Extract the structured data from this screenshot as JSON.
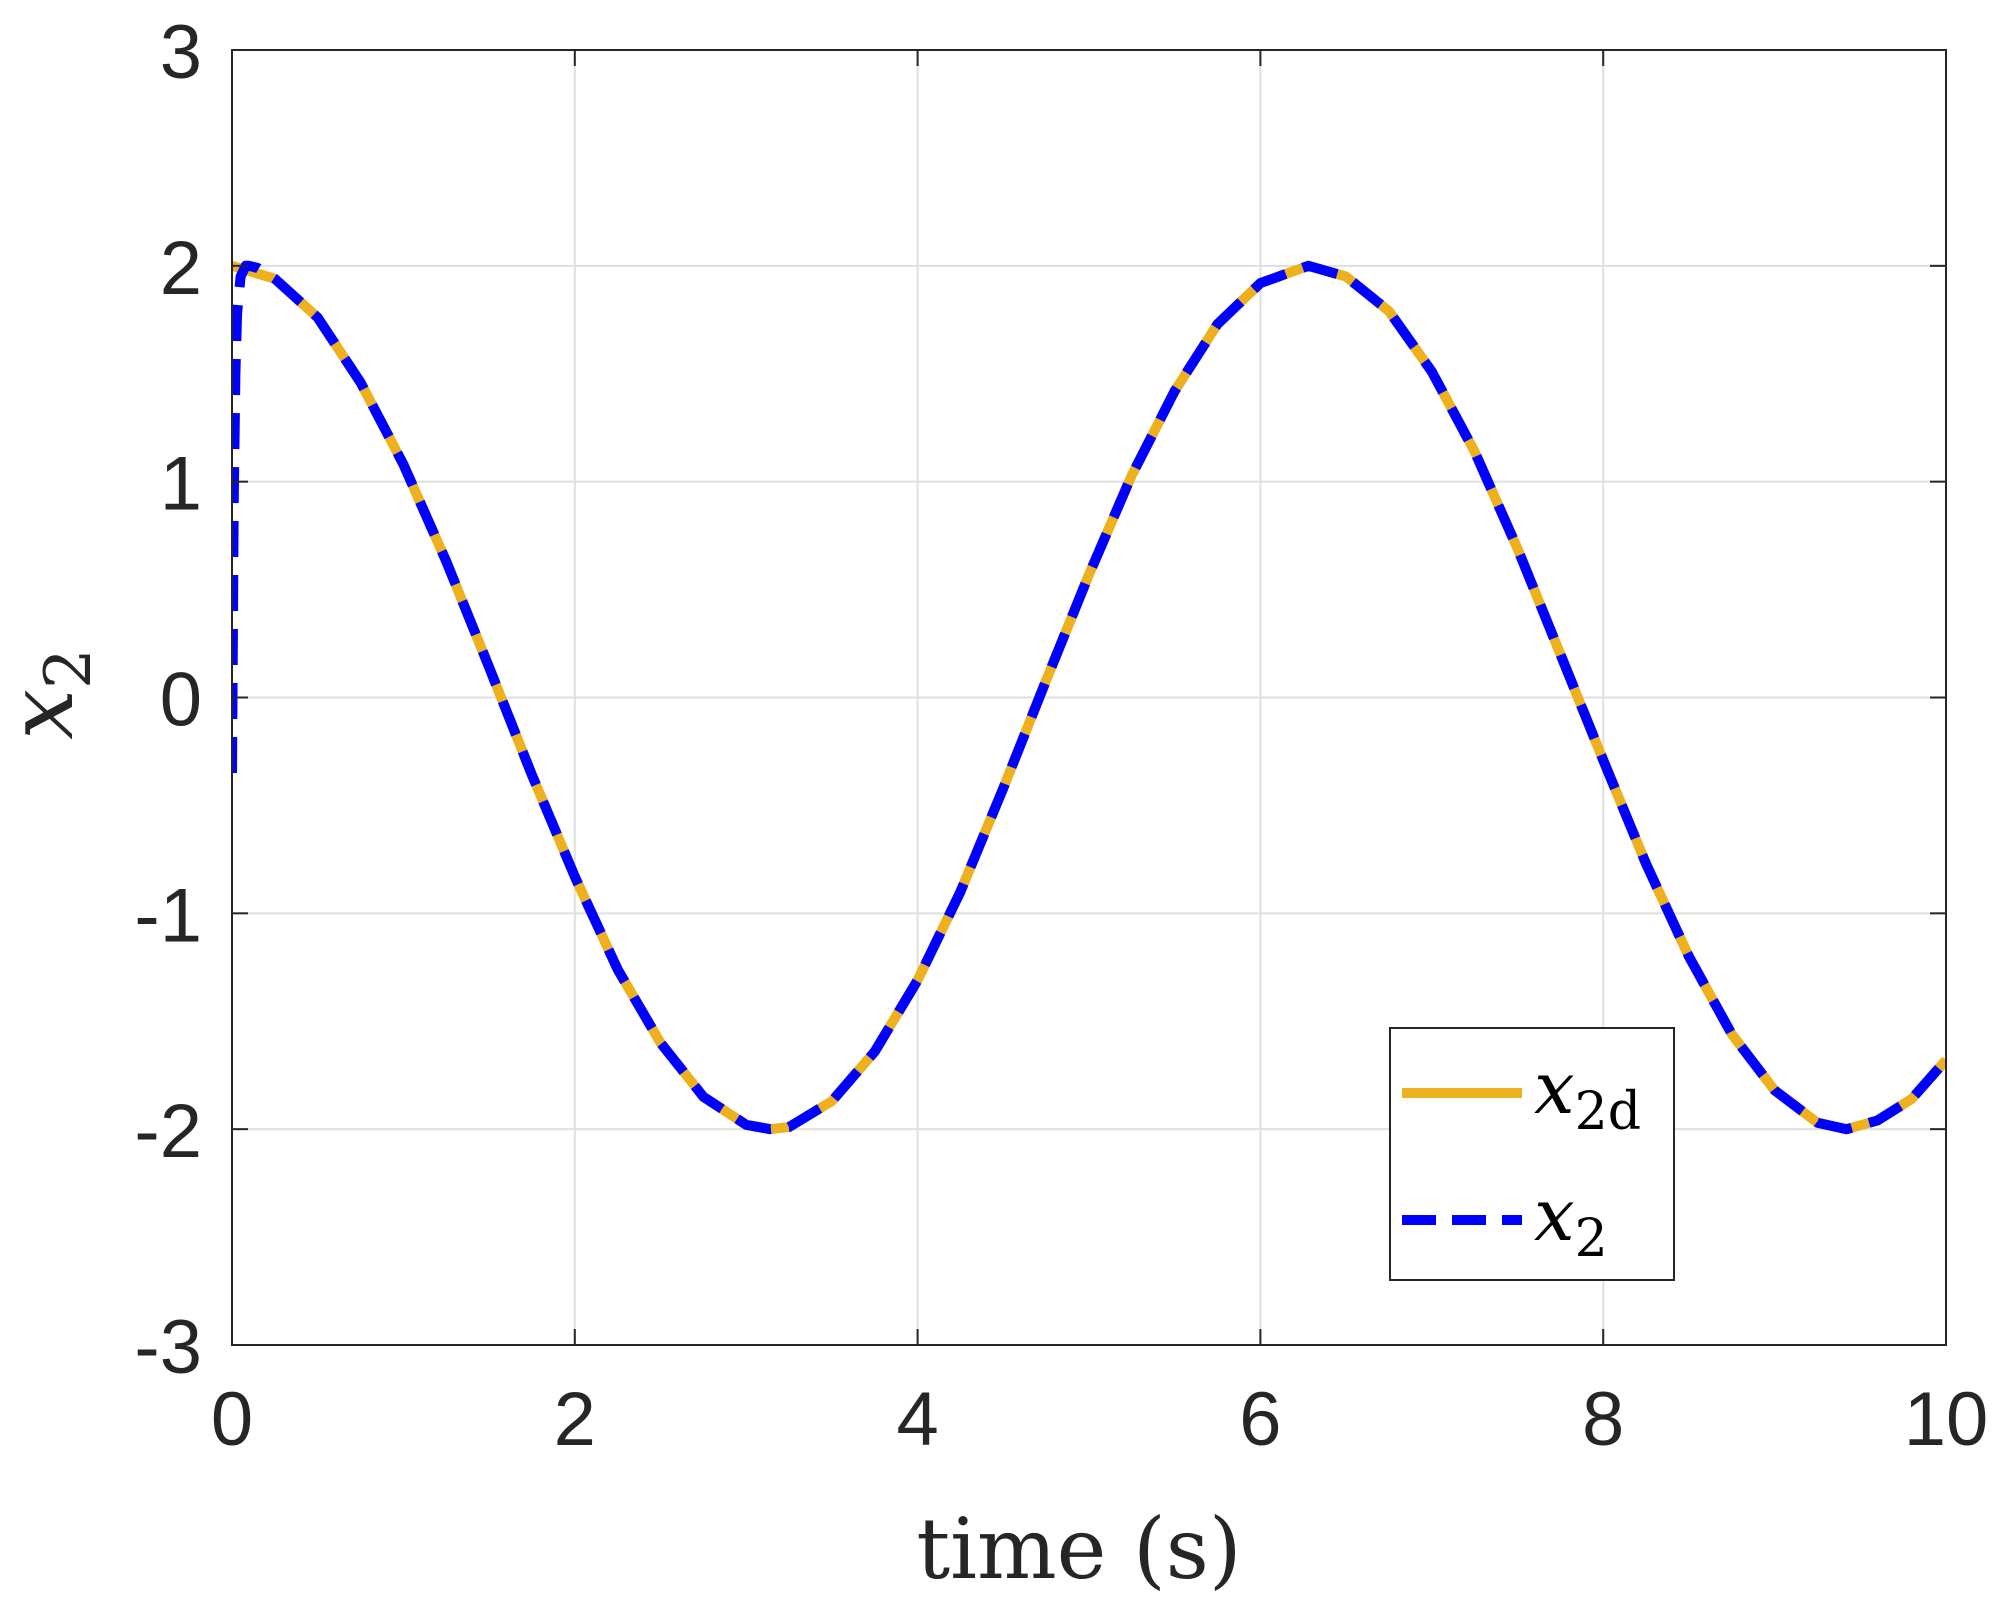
{
  "chart_data": {
    "type": "line",
    "xlabel": "time (s)",
    "ylabel": "x_2",
    "ylabel_main": "x",
    "ylabel_sub": "2",
    "xlim": [
      0,
      10
    ],
    "ylim": [
      -3,
      3
    ],
    "xticks": [
      0,
      2,
      4,
      6,
      8,
      10
    ],
    "xtick_labels": [
      "0",
      "2",
      "4",
      "6",
      "8",
      "10"
    ],
    "yticks": [
      3,
      2,
      1,
      0,
      -1,
      -2,
      -3
    ],
    "ytick_labels": [
      "3",
      "2",
      "1",
      "0",
      "-1",
      "-2",
      "-3"
    ],
    "grid": true,
    "legend_position": "bottom-right",
    "series": [
      {
        "name": "x_2d",
        "name_main": "x",
        "name_sub": "2d",
        "color": "#EDB120",
        "style": "solid",
        "x": [
          0,
          0.25,
          0.5,
          0.75,
          1,
          1.25,
          1.5,
          1.75,
          2,
          2.25,
          2.5,
          2.75,
          3,
          3.14,
          3.25,
          3.5,
          3.75,
          4,
          4.25,
          4.5,
          4.75,
          5,
          5.25,
          5.5,
          5.75,
          6,
          6.28,
          6.5,
          6.75,
          7,
          7.25,
          7.5,
          7.75,
          8,
          8.25,
          8.5,
          8.75,
          9,
          9.25,
          9.42,
          9.6,
          9.8,
          10
        ],
        "y": [
          2,
          1.94,
          1.76,
          1.46,
          1.08,
          0.63,
          0.14,
          -0.36,
          -0.83,
          -1.26,
          -1.6,
          -1.85,
          -1.98,
          -2,
          -1.99,
          -1.87,
          -1.64,
          -1.31,
          -0.9,
          -0.42,
          0.08,
          0.57,
          1.03,
          1.42,
          1.73,
          1.92,
          2,
          1.95,
          1.79,
          1.51,
          1.14,
          0.69,
          0.2,
          -0.29,
          -0.77,
          -1.2,
          -1.56,
          -1.82,
          -1.97,
          -2,
          -1.96,
          -1.86,
          -1.68
        ]
      },
      {
        "name": "x_2",
        "name_main": "x",
        "name_sub": "2",
        "color": "#0000FF",
        "style": "dashed",
        "x": [
          0,
          0.005,
          0.01,
          0.02,
          0.03,
          0.05,
          0.08,
          0.1,
          0.15,
          0.25,
          0.5,
          0.75,
          1,
          1.25,
          1.5,
          1.75,
          2,
          2.25,
          2.5,
          2.75,
          3,
          3.14,
          3.25,
          3.5,
          3.75,
          4,
          4.25,
          4.5,
          4.75,
          5,
          5.25,
          5.5,
          5.75,
          6,
          6.28,
          6.5,
          6.75,
          7,
          7.25,
          7.5,
          7.75,
          8,
          8.25,
          8.5,
          8.75,
          9,
          9.25,
          9.42,
          9.6,
          9.8,
          10
        ],
        "y": [
          -0.35,
          0.3,
          0.9,
          1.5,
          1.78,
          1.95,
          2,
          2,
          1.99,
          1.94,
          1.76,
          1.46,
          1.08,
          0.63,
          0.14,
          -0.36,
          -0.83,
          -1.26,
          -1.6,
          -1.85,
          -1.98,
          -2,
          -1.99,
          -1.87,
          -1.64,
          -1.31,
          -0.9,
          -0.42,
          0.08,
          0.57,
          1.03,
          1.42,
          1.73,
          1.92,
          2,
          1.95,
          1.79,
          1.51,
          1.14,
          0.69,
          0.2,
          -0.29,
          -0.77,
          -1.2,
          -1.56,
          -1.82,
          -1.97,
          -2,
          -1.96,
          -1.86,
          -1.68
        ]
      }
    ]
  }
}
